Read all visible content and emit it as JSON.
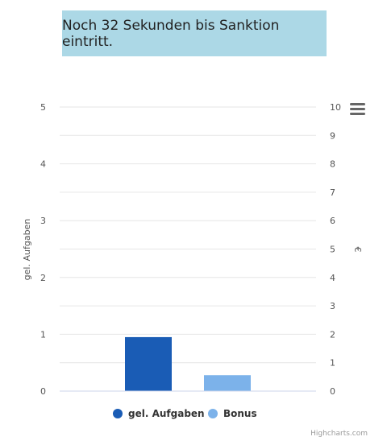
{
  "banner": {
    "text": "Noch 32 Sekunden bis Sanktion eintritt."
  },
  "chart_data": {
    "type": "bar",
    "title": "",
    "categories": [
      ""
    ],
    "series": [
      {
        "name": "gel. Aufgaben",
        "values": [
          0.95
        ],
        "axis": "left",
        "color": "#1a5cb5"
      },
      {
        "name": "Bonus",
        "values": [
          0.28
        ],
        "axis": "left",
        "color": "#7cb2ea"
      }
    ],
    "y_left": {
      "label": "gel. Aufgaben",
      "ylim": [
        0,
        5
      ],
      "ticks": [
        "0",
        "1",
        "2",
        "3",
        "4",
        "5"
      ]
    },
    "y_right": {
      "label": "€",
      "ylim": [
        0,
        10
      ],
      "ticks": [
        "0",
        "1",
        "2",
        "3",
        "4",
        "5",
        "6",
        "7",
        "8",
        "9",
        "10"
      ]
    },
    "grid": true,
    "legend": "bottom-center"
  },
  "menu": {
    "icon": "hamburger-menu-icon"
  },
  "credits": "Highcharts.com"
}
